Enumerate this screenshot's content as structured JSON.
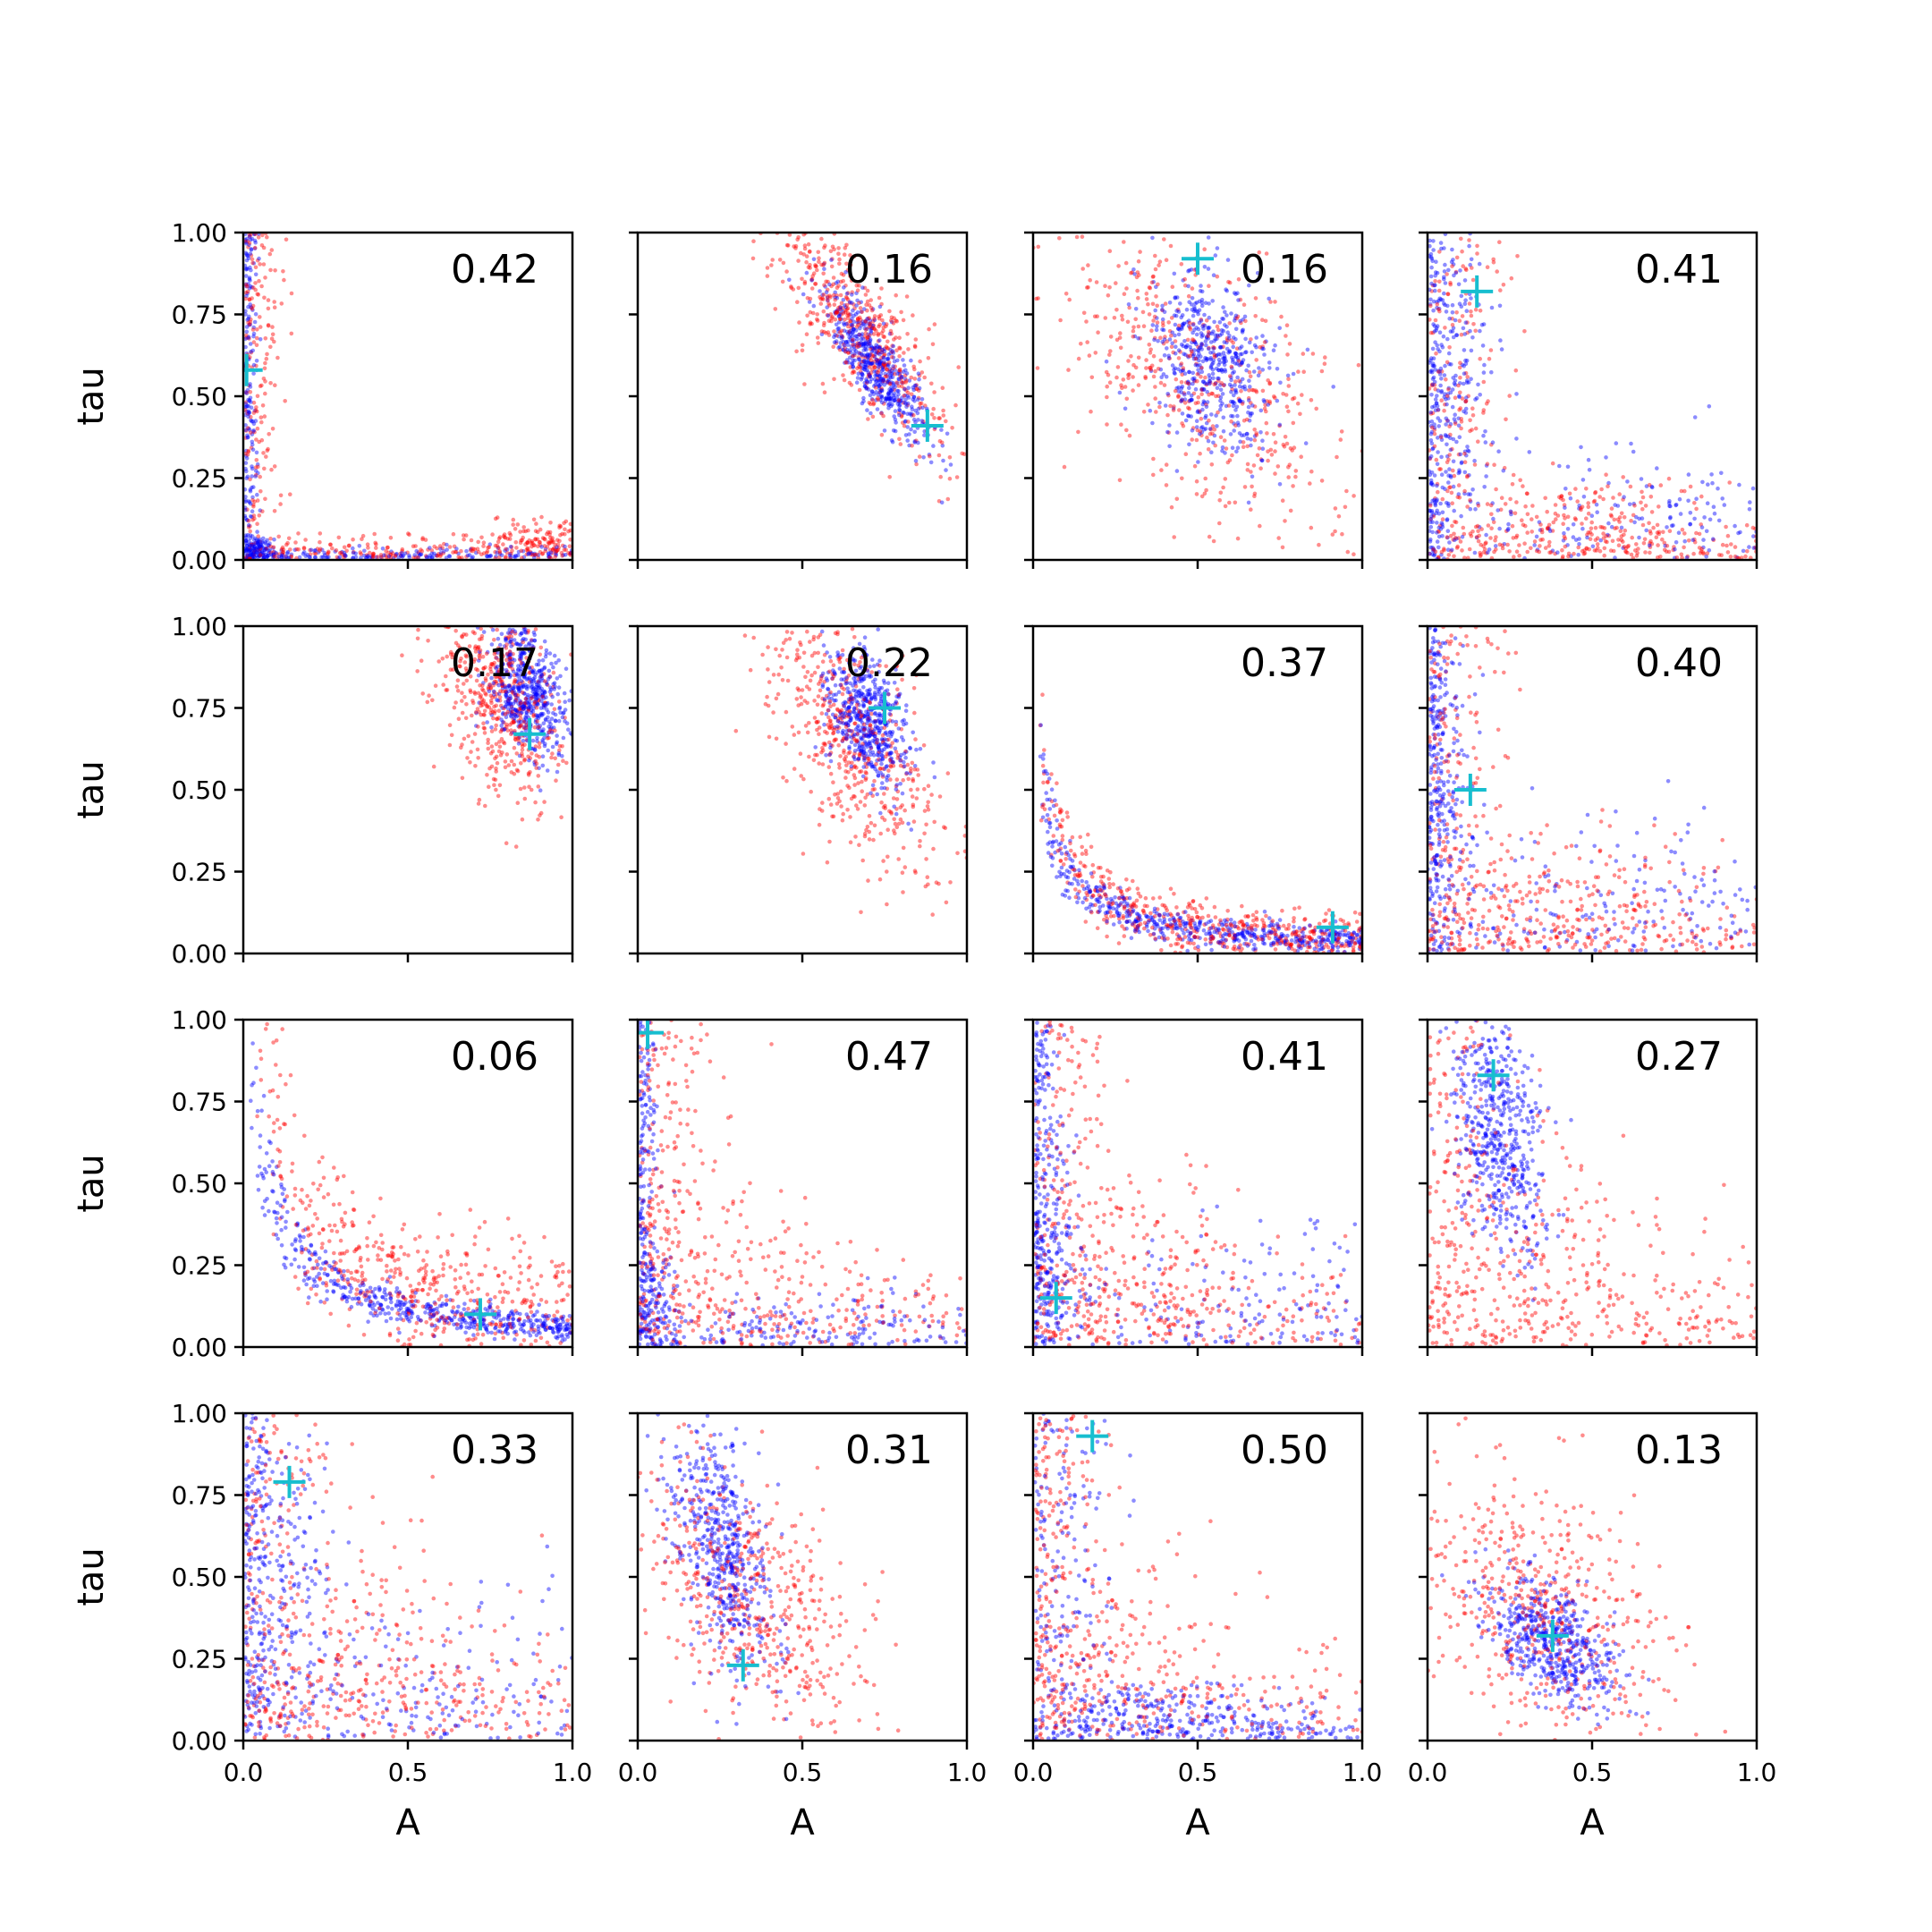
{
  "figure": {
    "background": "#ffffff",
    "grid": "4x4",
    "shared_x": true,
    "shared_y": true
  },
  "colors": {
    "series_red": "#ff0000",
    "series_blue": "#0000ff",
    "marker": "#17becf",
    "axes": "#000000"
  },
  "axis_text": {
    "xlabel": "A",
    "ylabel": "tau",
    "xticks": [
      "0.0",
      "0.5",
      "1.0"
    ],
    "yticks": [
      "0.00",
      "0.25",
      "0.50",
      "0.75",
      "1.00"
    ]
  },
  "chart_data": [
    {
      "type": "scatter",
      "annotation": "0.42",
      "marker": {
        "x": 0.01,
        "y": 0.58
      },
      "red": {
        "shape": "L",
        "cx": 0.9,
        "cy": 0.05,
        "sx": 0.09,
        "sy": 0.04,
        "c": 0.0
      },
      "blue": {
        "shape": "L",
        "cx": 0.03,
        "cy": 0.03,
        "sx": 0.03,
        "sy": 0.02,
        "c": 0.0
      },
      "xlim": [
        0,
        1
      ],
      "ylim": [
        0,
        1
      ]
    },
    {
      "type": "scatter",
      "annotation": "0.16",
      "marker": {
        "x": 0.88,
        "y": 0.41
      },
      "red": {
        "shape": "blob",
        "cx": 0.67,
        "cy": 0.7,
        "sx": 0.13,
        "sy": 0.18,
        "c": -0.8
      },
      "blue": {
        "shape": "blob",
        "cx": 0.72,
        "cy": 0.6,
        "sx": 0.08,
        "sy": 0.12,
        "c": -0.85
      },
      "xlim": [
        0,
        1
      ],
      "ylim": [
        0,
        1
      ]
    },
    {
      "type": "scatter",
      "annotation": "0.16",
      "marker": {
        "x": 0.5,
        "y": 0.92
      },
      "red": {
        "shape": "blob",
        "cx": 0.5,
        "cy": 0.55,
        "sx": 0.25,
        "sy": 0.25,
        "c": -0.6
      },
      "blue": {
        "shape": "blob",
        "cx": 0.55,
        "cy": 0.6,
        "sx": 0.09,
        "sy": 0.13,
        "c": -0.2
      },
      "xlim": [
        0,
        1
      ],
      "ylim": [
        0,
        1
      ]
    },
    {
      "type": "scatter",
      "annotation": "0.41",
      "marker": {
        "x": 0.15,
        "y": 0.82
      },
      "red": {
        "shape": "L",
        "cx": 0.45,
        "cy": 0.15,
        "sx": 0.2,
        "sy": 0.06,
        "c": 0.0
      },
      "blue": {
        "shape": "L",
        "cx": 0.1,
        "cy": 0.6,
        "sx": 0.06,
        "sy": 0.2,
        "c": 0.0
      },
      "xlim": [
        0,
        1
      ],
      "ylim": [
        0,
        1
      ]
    },
    {
      "type": "scatter",
      "annotation": "0.17",
      "marker": {
        "x": 0.87,
        "y": 0.67
      },
      "red": {
        "shape": "blob",
        "cx": 0.78,
        "cy": 0.78,
        "sx": 0.1,
        "sy": 0.16,
        "c": -0.4
      },
      "blue": {
        "shape": "blob",
        "cx": 0.86,
        "cy": 0.8,
        "sx": 0.06,
        "sy": 0.1,
        "c": -0.4
      },
      "xlim": [
        0,
        1
      ],
      "ylim": [
        0,
        1
      ]
    },
    {
      "type": "scatter",
      "annotation": "0.22",
      "marker": {
        "x": 0.75,
        "y": 0.75
      },
      "red": {
        "shape": "blob",
        "cx": 0.65,
        "cy": 0.65,
        "sx": 0.13,
        "sy": 0.2,
        "c": -0.6
      },
      "blue": {
        "shape": "blob",
        "cx": 0.7,
        "cy": 0.72,
        "sx": 0.06,
        "sy": 0.1,
        "c": -0.4
      },
      "xlim": [
        0,
        1
      ],
      "ylim": [
        0,
        1
      ]
    },
    {
      "type": "scatter",
      "annotation": "0.37",
      "marker": {
        "x": 0.91,
        "y": 0.08
      },
      "red": {
        "shape": "hyper",
        "cx": 0.3,
        "cy": 0.15,
        "sx": 0.15,
        "sy": 0.1,
        "c": 0.0
      },
      "blue": {
        "shape": "hyper",
        "cx": 0.5,
        "cy": 0.08,
        "sx": 0.1,
        "sy": 0.05,
        "c": 0.0
      },
      "xlim": [
        0,
        1
      ],
      "ylim": [
        0,
        1
      ]
    },
    {
      "type": "scatter",
      "annotation": "0.40",
      "marker": {
        "x": 0.13,
        "y": 0.5
      },
      "red": {
        "shape": "L",
        "cx": 0.45,
        "cy": 0.2,
        "sx": 0.2,
        "sy": 0.1,
        "c": 0.0
      },
      "blue": {
        "shape": "L",
        "cx": 0.05,
        "cy": 0.5,
        "sx": 0.05,
        "sy": 0.25,
        "c": 0.0
      },
      "xlim": [
        0,
        1
      ],
      "ylim": [
        0,
        1
      ]
    },
    {
      "type": "scatter",
      "annotation": "0.06",
      "marker": {
        "x": 0.72,
        "y": 0.1
      },
      "red": {
        "shape": "hyper",
        "cx": 0.25,
        "cy": 0.4,
        "sx": 0.15,
        "sy": 0.25,
        "c": 0.0
      },
      "blue": {
        "shape": "hyper",
        "cx": 0.65,
        "cy": 0.1,
        "sx": 0.15,
        "sy": 0.05,
        "c": 0.0
      },
      "xlim": [
        0,
        1
      ],
      "ylim": [
        0,
        1
      ]
    },
    {
      "type": "scatter",
      "annotation": "0.47",
      "marker": {
        "x": 0.03,
        "y": 0.96
      },
      "red": {
        "shape": "L",
        "cx": 0.3,
        "cy": 0.2,
        "sx": 0.18,
        "sy": 0.15,
        "c": 0.0
      },
      "blue": {
        "shape": "L",
        "cx": 0.05,
        "cy": 0.1,
        "sx": 0.05,
        "sy": 0.1,
        "c": 0.0
      },
      "xlim": [
        0,
        1
      ],
      "ylim": [
        0,
        1
      ]
    },
    {
      "type": "scatter",
      "annotation": "0.41",
      "marker": {
        "x": 0.07,
        "y": 0.15
      },
      "red": {
        "shape": "L",
        "cx": 0.35,
        "cy": 0.25,
        "sx": 0.2,
        "sy": 0.15,
        "c": 0.0
      },
      "blue": {
        "shape": "L",
        "cx": 0.05,
        "cy": 0.3,
        "sx": 0.05,
        "sy": 0.2,
        "c": 0.0
      },
      "xlim": [
        0,
        1
      ],
      "ylim": [
        0,
        1
      ]
    },
    {
      "type": "scatter",
      "annotation": "0.27",
      "marker": {
        "x": 0.2,
        "y": 0.83
      },
      "red": {
        "shape": "L",
        "cx": 0.35,
        "cy": 0.3,
        "sx": 0.2,
        "sy": 0.15,
        "c": 0.0
      },
      "blue": {
        "shape": "blob",
        "cx": 0.22,
        "cy": 0.65,
        "sx": 0.07,
        "sy": 0.18,
        "c": -0.3
      },
      "xlim": [
        0,
        1
      ],
      "ylim": [
        0,
        1
      ]
    },
    {
      "type": "scatter",
      "annotation": "0.33",
      "marker": {
        "x": 0.14,
        "y": 0.79
      },
      "red": {
        "shape": "L",
        "cx": 0.4,
        "cy": 0.3,
        "sx": 0.2,
        "sy": 0.2,
        "c": 0.0
      },
      "blue": {
        "shape": "L",
        "cx": 0.15,
        "cy": 0.5,
        "sx": 0.07,
        "sy": 0.25,
        "c": 0.0
      },
      "xlim": [
        0,
        1
      ],
      "ylim": [
        0,
        1
      ]
    },
    {
      "type": "scatter",
      "annotation": "0.31",
      "marker": {
        "x": 0.32,
        "y": 0.23
      },
      "red": {
        "shape": "blob",
        "cx": 0.35,
        "cy": 0.45,
        "sx": 0.18,
        "sy": 0.22,
        "c": -0.6
      },
      "blue": {
        "shape": "blob",
        "cx": 0.25,
        "cy": 0.6,
        "sx": 0.08,
        "sy": 0.2,
        "c": -0.5
      },
      "xlim": [
        0,
        1
      ],
      "ylim": [
        0,
        1
      ]
    },
    {
      "type": "scatter",
      "annotation": "0.50",
      "marker": {
        "x": 0.18,
        "y": 0.93
      },
      "red": {
        "shape": "L",
        "cx": 0.25,
        "cy": 0.25,
        "sx": 0.15,
        "sy": 0.2,
        "c": 0.0
      },
      "blue": {
        "shape": "L",
        "cx": 0.4,
        "cy": 0.1,
        "sx": 0.2,
        "sy": 0.05,
        "c": 0.0
      },
      "xlim": [
        0,
        1
      ],
      "ylim": [
        0,
        1
      ]
    },
    {
      "type": "scatter",
      "annotation": "0.13",
      "marker": {
        "x": 0.38,
        "y": 0.32
      },
      "red": {
        "shape": "blob",
        "cx": 0.35,
        "cy": 0.4,
        "sx": 0.2,
        "sy": 0.22,
        "c": -0.5
      },
      "blue": {
        "shape": "blob",
        "cx": 0.38,
        "cy": 0.3,
        "sx": 0.1,
        "sy": 0.1,
        "c": -0.5
      },
      "xlim": [
        0,
        1
      ],
      "ylim": [
        0,
        1
      ]
    }
  ]
}
